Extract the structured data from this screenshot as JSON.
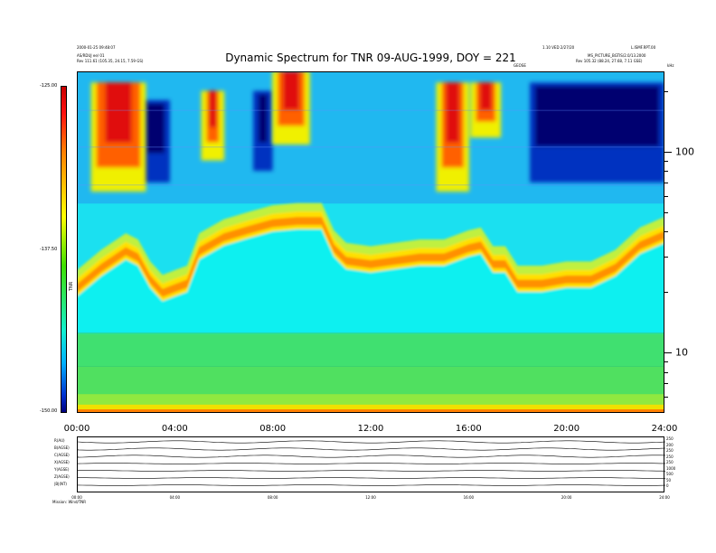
{
  "header": {
    "line1_left": "2000-01-25 09:48:07",
    "line2_left": "AS/RDUJ ee/ 01",
    "line3_left": "Rev   111.61 (105.35, 24.15, 7.59 GS)",
    "line1_right_a": "1.10 VED 2/27/20",
    "line1_right_b": "L.ISMF.RPT.00",
    "line2_right": "MS_PICTURE_BGTIS/2.0/13.2000",
    "line3_right": "Rev   105.32 (88.24, 27.68, 7.11 GSE)",
    "mid_label": "GEOSE",
    "unit": "kHz"
  },
  "chart_data": {
    "type": "heatmap",
    "title": "Dynamic Spectrum for TNR 09-AUG-1999, DOY = 221",
    "colorbar": {
      "labels": [
        "-125.00",
        "-137.50",
        "-150.00"
      ],
      "unit_label": "TNR",
      "range": [
        -150.0,
        -125.0
      ],
      "colors": [
        "#000080",
        "#0030d0",
        "#00b0ff",
        "#10f0d0",
        "#40e000",
        "#ffff00",
        "#ff8000",
        "#ff1010",
        "#c80000"
      ]
    },
    "x": {
      "ticks": [
        "00:00",
        "04:00",
        "08:00",
        "12:00",
        "16:00",
        "20:00",
        "24:00"
      ],
      "tick_hours": [
        0,
        4,
        8,
        12,
        16,
        20,
        24
      ],
      "range_hours": [
        0,
        24
      ]
    },
    "y": {
      "scale": "log",
      "unit": "kHz",
      "ticks": [
        "100",
        "10"
      ],
      "tick_values": [
        100,
        10
      ],
      "range": [
        5,
        250
      ]
    },
    "features": {
      "plasma_line_hours": [
        0,
        1,
        2,
        2.5,
        3,
        3.5,
        4,
        4.5,
        5,
        6,
        7,
        8,
        9,
        10,
        10.5,
        11,
        12,
        13,
        14,
        15,
        16,
        16.5,
        17,
        17.5,
        18,
        19,
        20,
        21,
        22,
        23,
        24
      ],
      "plasma_line_khz": [
        19,
        24,
        29,
        27,
        21,
        18,
        19,
        20,
        29,
        34,
        37,
        40,
        41,
        41,
        30,
        26,
        25,
        26,
        27,
        27,
        30,
        31,
        25,
        25,
        20,
        20,
        21,
        21,
        24,
        31,
        35
      ],
      "bursts": [
        {
          "start": 0.8,
          "end": 2.6,
          "low_khz": 70,
          "high_khz": 220
        },
        {
          "start": 5.3,
          "end": 5.8,
          "low_khz": 100,
          "high_khz": 200
        },
        {
          "start": 8.2,
          "end": 9.3,
          "low_khz": 120,
          "high_khz": 250
        },
        {
          "start": 14.9,
          "end": 15.8,
          "low_khz": 70,
          "high_khz": 220
        },
        {
          "start": 16.3,
          "end": 17.1,
          "low_khz": 130,
          "high_khz": 220
        }
      ],
      "dark_regions": [
        {
          "start": 2.6,
          "end": 3.8,
          "low_khz": 70,
          "high_khz": 180
        },
        {
          "start": 7.2,
          "end": 8.0,
          "low_khz": 80,
          "high_khz": 200
        },
        {
          "start": 18.5,
          "end": 24,
          "low_khz": 70,
          "high_khz": 220
        }
      ]
    }
  },
  "ephemeris": {
    "rows_left": [
      "R(AU)",
      "B(AGSE)",
      "C(AGSE)",
      "X(AGSE)",
      "Y(AGSE)",
      "Z(AGSE)",
      "|B|(NT)"
    ],
    "rows_right": [
      "250",
      "200",
      "250",
      "250",
      "250",
      "1000",
      "500",
      "50",
      "0"
    ],
    "x_ticks": [
      "00:00",
      "04:00",
      "08:00",
      "12:00",
      "16:00",
      "20:00",
      "24:00"
    ],
    "footer": "Mission: Wind/TNR"
  }
}
